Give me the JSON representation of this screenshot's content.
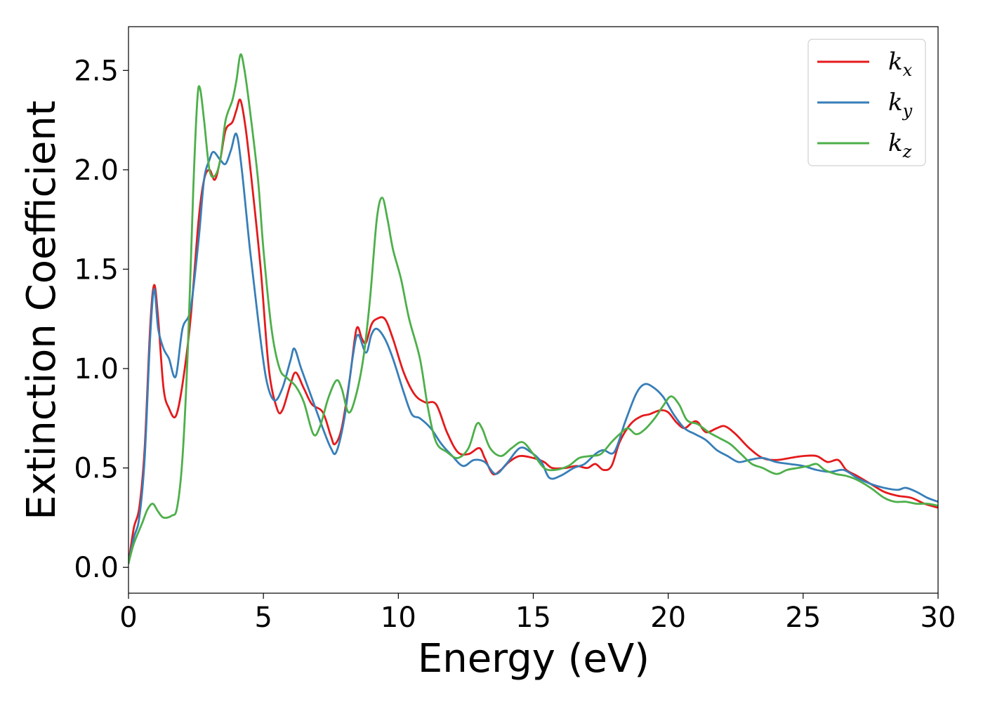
{
  "chart_data": {
    "type": "line",
    "xlabel": "Energy (eV)",
    "ylabel": "Extinction Coefficient",
    "xlim": [
      0,
      30
    ],
    "ylim": [
      -0.13,
      2.72
    ],
    "xticks": [
      0,
      5,
      10,
      15,
      20,
      25,
      30
    ],
    "yticks": [
      0.0,
      0.5,
      1.0,
      1.5,
      2.0,
      2.5
    ],
    "grid": false,
    "legend_position": "top-right",
    "series": [
      {
        "name": "k_x",
        "label_base": "k",
        "label_sub": "x",
        "color": "#e41a1c",
        "points": [
          [
            0,
            0.02
          ],
          [
            0.2,
            0.2
          ],
          [
            0.4,
            0.3
          ],
          [
            0.6,
            0.6
          ],
          [
            0.8,
            1.2
          ],
          [
            0.95,
            1.42
          ],
          [
            1.1,
            1.25
          ],
          [
            1.3,
            0.9
          ],
          [
            1.5,
            0.8
          ],
          [
            1.75,
            0.76
          ],
          [
            2.0,
            0.92
          ],
          [
            2.3,
            1.25
          ],
          [
            2.6,
            1.75
          ],
          [
            2.8,
            1.95
          ],
          [
            3.0,
            2.0
          ],
          [
            3.2,
            1.95
          ],
          [
            3.4,
            2.05
          ],
          [
            3.6,
            2.2
          ],
          [
            3.85,
            2.24
          ],
          [
            4.0,
            2.3
          ],
          [
            4.15,
            2.35
          ],
          [
            4.35,
            2.2
          ],
          [
            4.6,
            1.9
          ],
          [
            4.9,
            1.5
          ],
          [
            5.2,
            1.0
          ],
          [
            5.5,
            0.8
          ],
          [
            5.7,
            0.79
          ],
          [
            6.0,
            0.92
          ],
          [
            6.2,
            0.98
          ],
          [
            6.5,
            0.9
          ],
          [
            6.8,
            0.82
          ],
          [
            7.2,
            0.78
          ],
          [
            7.5,
            0.66
          ],
          [
            7.65,
            0.62
          ],
          [
            7.9,
            0.7
          ],
          [
            8.2,
            0.95
          ],
          [
            8.45,
            1.2
          ],
          [
            8.65,
            1.15
          ],
          [
            8.8,
            1.13
          ],
          [
            9.0,
            1.22
          ],
          [
            9.2,
            1.25
          ],
          [
            9.5,
            1.25
          ],
          [
            9.8,
            1.15
          ],
          [
            10.2,
            0.98
          ],
          [
            10.6,
            0.87
          ],
          [
            11.0,
            0.83
          ],
          [
            11.4,
            0.82
          ],
          [
            11.8,
            0.68
          ],
          [
            12.2,
            0.58
          ],
          [
            12.6,
            0.57
          ],
          [
            13.0,
            0.6
          ],
          [
            13.2,
            0.55
          ],
          [
            13.5,
            0.47
          ],
          [
            13.8,
            0.49
          ],
          [
            14.1,
            0.53
          ],
          [
            14.5,
            0.56
          ],
          [
            15.0,
            0.55
          ],
          [
            15.4,
            0.53
          ],
          [
            15.7,
            0.5
          ],
          [
            16.2,
            0.5
          ],
          [
            16.6,
            0.51
          ],
          [
            17.0,
            0.5
          ],
          [
            17.3,
            0.52
          ],
          [
            17.6,
            0.49
          ],
          [
            17.9,
            0.51
          ],
          [
            18.2,
            0.63
          ],
          [
            18.6,
            0.72
          ],
          [
            19.0,
            0.76
          ],
          [
            19.3,
            0.77
          ],
          [
            19.7,
            0.79
          ],
          [
            20.0,
            0.78
          ],
          [
            20.3,
            0.73
          ],
          [
            20.6,
            0.7
          ],
          [
            20.9,
            0.73
          ],
          [
            21.1,
            0.73
          ],
          [
            21.4,
            0.68
          ],
          [
            21.8,
            0.7
          ],
          [
            22.1,
            0.71
          ],
          [
            22.5,
            0.67
          ],
          [
            23.0,
            0.6
          ],
          [
            23.5,
            0.55
          ],
          [
            24.0,
            0.54
          ],
          [
            24.5,
            0.55
          ],
          [
            25.0,
            0.56
          ],
          [
            25.5,
            0.56
          ],
          [
            25.9,
            0.53
          ],
          [
            26.3,
            0.54
          ],
          [
            26.6,
            0.49
          ],
          [
            27.0,
            0.46
          ],
          [
            27.5,
            0.42
          ],
          [
            28.0,
            0.38
          ],
          [
            28.5,
            0.36
          ],
          [
            29.0,
            0.35
          ],
          [
            29.5,
            0.32
          ],
          [
            30,
            0.3
          ]
        ]
      },
      {
        "name": "k_y",
        "label_base": "k",
        "label_sub": "y",
        "color": "#377eb8",
        "points": [
          [
            0,
            0.02
          ],
          [
            0.2,
            0.15
          ],
          [
            0.4,
            0.25
          ],
          [
            0.6,
            0.55
          ],
          [
            0.8,
            1.15
          ],
          [
            0.95,
            1.4
          ],
          [
            1.1,
            1.2
          ],
          [
            1.3,
            1.1
          ],
          [
            1.5,
            1.05
          ],
          [
            1.75,
            0.96
          ],
          [
            2.0,
            1.2
          ],
          [
            2.3,
            1.3
          ],
          [
            2.6,
            1.65
          ],
          [
            2.8,
            1.95
          ],
          [
            3.0,
            2.05
          ],
          [
            3.15,
            2.09
          ],
          [
            3.4,
            2.05
          ],
          [
            3.6,
            2.03
          ],
          [
            3.8,
            2.1
          ],
          [
            4.0,
            2.18
          ],
          [
            4.2,
            2.0
          ],
          [
            4.5,
            1.6
          ],
          [
            4.8,
            1.25
          ],
          [
            5.1,
            0.95
          ],
          [
            5.4,
            0.84
          ],
          [
            5.7,
            0.9
          ],
          [
            6.0,
            1.04
          ],
          [
            6.15,
            1.1
          ],
          [
            6.4,
            1.0
          ],
          [
            6.8,
            0.85
          ],
          [
            7.2,
            0.7
          ],
          [
            7.5,
            0.6
          ],
          [
            7.7,
            0.58
          ],
          [
            8.0,
            0.75
          ],
          [
            8.3,
            1.05
          ],
          [
            8.5,
            1.17
          ],
          [
            8.8,
            1.08
          ],
          [
            9.0,
            1.17
          ],
          [
            9.2,
            1.2
          ],
          [
            9.5,
            1.15
          ],
          [
            9.8,
            1.05
          ],
          [
            10.2,
            0.88
          ],
          [
            10.5,
            0.77
          ],
          [
            10.8,
            0.75
          ],
          [
            11.2,
            0.7
          ],
          [
            11.6,
            0.62
          ],
          [
            12.0,
            0.56
          ],
          [
            12.4,
            0.51
          ],
          [
            12.8,
            0.54
          ],
          [
            13.2,
            0.53
          ],
          [
            13.6,
            0.47
          ],
          [
            14.0,
            0.52
          ],
          [
            14.5,
            0.6
          ],
          [
            14.9,
            0.58
          ],
          [
            15.3,
            0.53
          ],
          [
            15.6,
            0.45
          ],
          [
            16.0,
            0.46
          ],
          [
            16.5,
            0.5
          ],
          [
            16.9,
            0.52
          ],
          [
            17.3,
            0.57
          ],
          [
            17.6,
            0.59
          ],
          [
            18.0,
            0.58
          ],
          [
            18.4,
            0.73
          ],
          [
            18.8,
            0.87
          ],
          [
            19.1,
            0.92
          ],
          [
            19.4,
            0.91
          ],
          [
            19.8,
            0.86
          ],
          [
            20.2,
            0.77
          ],
          [
            20.6,
            0.7
          ],
          [
            21.0,
            0.67
          ],
          [
            21.4,
            0.64
          ],
          [
            21.8,
            0.59
          ],
          [
            22.2,
            0.56
          ],
          [
            22.6,
            0.53
          ],
          [
            23.0,
            0.54
          ],
          [
            23.5,
            0.55
          ],
          [
            24.0,
            0.53
          ],
          [
            24.5,
            0.52
          ],
          [
            25.0,
            0.51
          ],
          [
            25.5,
            0.49
          ],
          [
            26.0,
            0.48
          ],
          [
            26.5,
            0.49
          ],
          [
            27.0,
            0.45
          ],
          [
            27.5,
            0.42
          ],
          [
            28.0,
            0.4
          ],
          [
            28.5,
            0.39
          ],
          [
            28.8,
            0.4
          ],
          [
            29.2,
            0.38
          ],
          [
            29.6,
            0.35
          ],
          [
            30,
            0.33
          ]
        ]
      },
      {
        "name": "k_z",
        "label_base": "k",
        "label_sub": "z",
        "color": "#4daf4a",
        "points": [
          [
            0,
            0.02
          ],
          [
            0.2,
            0.12
          ],
          [
            0.5,
            0.22
          ],
          [
            0.7,
            0.29
          ],
          [
            0.9,
            0.32
          ],
          [
            1.1,
            0.28
          ],
          [
            1.3,
            0.25
          ],
          [
            1.6,
            0.26
          ],
          [
            1.8,
            0.3
          ],
          [
            2.0,
            0.55
          ],
          [
            2.2,
            1.1
          ],
          [
            2.4,
            1.9
          ],
          [
            2.55,
            2.35
          ],
          [
            2.65,
            2.41
          ],
          [
            2.8,
            2.25
          ],
          [
            3.0,
            2.0
          ],
          [
            3.2,
            1.97
          ],
          [
            3.4,
            2.05
          ],
          [
            3.6,
            2.25
          ],
          [
            3.85,
            2.35
          ],
          [
            4.0,
            2.45
          ],
          [
            4.15,
            2.58
          ],
          [
            4.3,
            2.5
          ],
          [
            4.5,
            2.3
          ],
          [
            4.8,
            1.95
          ],
          [
            5.0,
            1.6
          ],
          [
            5.3,
            1.2
          ],
          [
            5.6,
            1.0
          ],
          [
            5.9,
            0.95
          ],
          [
            6.2,
            0.91
          ],
          [
            6.5,
            0.83
          ],
          [
            6.85,
            0.67
          ],
          [
            7.1,
            0.71
          ],
          [
            7.4,
            0.85
          ],
          [
            7.7,
            0.94
          ],
          [
            7.9,
            0.9
          ],
          [
            8.15,
            0.78
          ],
          [
            8.4,
            0.85
          ],
          [
            8.7,
            1.05
          ],
          [
            8.95,
            1.35
          ],
          [
            9.2,
            1.75
          ],
          [
            9.4,
            1.86
          ],
          [
            9.6,
            1.75
          ],
          [
            9.8,
            1.6
          ],
          [
            10.1,
            1.45
          ],
          [
            10.4,
            1.25
          ],
          [
            10.8,
            1.05
          ],
          [
            11.1,
            0.8
          ],
          [
            11.4,
            0.63
          ],
          [
            11.8,
            0.58
          ],
          [
            12.2,
            0.55
          ],
          [
            12.6,
            0.6
          ],
          [
            12.9,
            0.72
          ],
          [
            13.1,
            0.7
          ],
          [
            13.4,
            0.6
          ],
          [
            13.8,
            0.56
          ],
          [
            14.2,
            0.6
          ],
          [
            14.6,
            0.63
          ],
          [
            15.0,
            0.57
          ],
          [
            15.4,
            0.5
          ],
          [
            15.8,
            0.49
          ],
          [
            16.3,
            0.51
          ],
          [
            16.7,
            0.55
          ],
          [
            17.1,
            0.56
          ],
          [
            17.5,
            0.57
          ],
          [
            17.9,
            0.63
          ],
          [
            18.2,
            0.67
          ],
          [
            18.5,
            0.7
          ],
          [
            18.8,
            0.67
          ],
          [
            19.1,
            0.69
          ],
          [
            19.5,
            0.75
          ],
          [
            19.8,
            0.81
          ],
          [
            20.1,
            0.86
          ],
          [
            20.4,
            0.82
          ],
          [
            20.7,
            0.74
          ],
          [
            21.1,
            0.72
          ],
          [
            21.5,
            0.68
          ],
          [
            21.9,
            0.65
          ],
          [
            22.3,
            0.62
          ],
          [
            22.7,
            0.57
          ],
          [
            23.1,
            0.52
          ],
          [
            23.5,
            0.5
          ],
          [
            24.0,
            0.47
          ],
          [
            24.4,
            0.49
          ],
          [
            24.8,
            0.5
          ],
          [
            25.2,
            0.51
          ],
          [
            25.5,
            0.52
          ],
          [
            25.8,
            0.49
          ],
          [
            26.2,
            0.47
          ],
          [
            26.6,
            0.46
          ],
          [
            27.0,
            0.44
          ],
          [
            27.5,
            0.4
          ],
          [
            28.0,
            0.35
          ],
          [
            28.4,
            0.33
          ],
          [
            28.8,
            0.33
          ],
          [
            29.2,
            0.32
          ],
          [
            29.6,
            0.32
          ],
          [
            30,
            0.31
          ]
        ]
      }
    ]
  }
}
